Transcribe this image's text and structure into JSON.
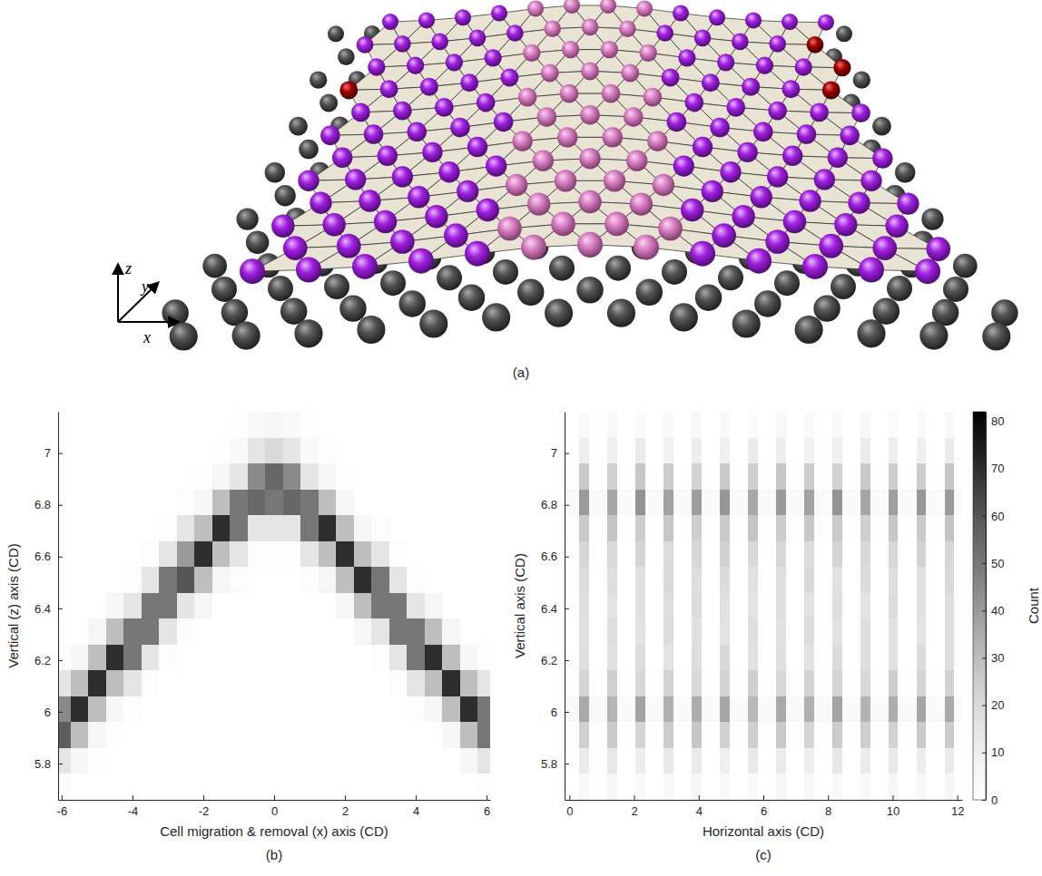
{
  "chart_data": [
    {
      "type": "illustration",
      "title": "(a)",
      "axis_labels": [
        "z",
        "y",
        "x"
      ]
    },
    {
      "type": "heatmap",
      "title": "(b)",
      "xlabel": "Cell migration & removal (x) axis (CD)",
      "ylabel": "Vertical (z) axis (CD)",
      "xlim": [
        -6.1,
        6.1
      ],
      "ylim": [
        5.66,
        7.16
      ],
      "xticks": [
        -6,
        -4,
        -2,
        0,
        2,
        4,
        6
      ],
      "yticks": [
        5.8,
        6,
        6.2,
        6.4,
        6.6,
        6.8,
        7
      ],
      "x_bins": [
        -6.25,
        -5.75,
        -5.25,
        -4.75,
        -4.25,
        -3.75,
        -3.25,
        -2.75,
        -2.25,
        -1.75,
        -1.25,
        -0.75,
        -0.25,
        0.25,
        0.75,
        1.25,
        1.75,
        2.25,
        2.75,
        3.25,
        3.75,
        4.25,
        4.75,
        5.25,
        5.75,
        6.25
      ],
      "y_bins": [
        5.66,
        5.76,
        5.86,
        5.96,
        6.06,
        6.16,
        6.26,
        6.36,
        6.46,
        6.56,
        6.66,
        6.76,
        6.86,
        6.96,
        7.06,
        7.16
      ],
      "values": [
        [
          2,
          0,
          0,
          0,
          0,
          0,
          0,
          0,
          0,
          0,
          0,
          0,
          0,
          0,
          0,
          0,
          0,
          0,
          0,
          0,
          0,
          0,
          0,
          0,
          2
        ],
        [
          15,
          6,
          1,
          0,
          0,
          0,
          0,
          0,
          0,
          0,
          0,
          0,
          0,
          0,
          0,
          0,
          0,
          0,
          0,
          0,
          0,
          0,
          0,
          6,
          15
        ],
        [
          58,
          30,
          6,
          1,
          0,
          0,
          0,
          0,
          0,
          0,
          0,
          0,
          0,
          0,
          0,
          0,
          0,
          0,
          0,
          0,
          0,
          0,
          6,
          30,
          50
        ],
        [
          45,
          70,
          30,
          6,
          2,
          0,
          0,
          0,
          0,
          0,
          0,
          0,
          0,
          0,
          0,
          0,
          0,
          0,
          0,
          0,
          2,
          6,
          30,
          70,
          50
        ],
        [
          15,
          30,
          70,
          30,
          15,
          2,
          0,
          0,
          0,
          0,
          0,
          0,
          0,
          0,
          0,
          0,
          0,
          0,
          0,
          2,
          15,
          30,
          70,
          30,
          15
        ],
        [
          2,
          6,
          30,
          70,
          50,
          15,
          2,
          0,
          0,
          0,
          0,
          0,
          0,
          0,
          0,
          0,
          0,
          0,
          2,
          15,
          50,
          70,
          30,
          6,
          2
        ],
        [
          0,
          0,
          6,
          30,
          50,
          50,
          15,
          2,
          0,
          0,
          0,
          0,
          0,
          0,
          0,
          0,
          0,
          6,
          15,
          50,
          50,
          30,
          6,
          0,
          0
        ],
        [
          0,
          0,
          0,
          6,
          15,
          50,
          50,
          15,
          6,
          0,
          0,
          0,
          0,
          0,
          0,
          0,
          6,
          30,
          50,
          50,
          15,
          6,
          0,
          0,
          0
        ],
        [
          0,
          0,
          0,
          0,
          2,
          15,
          50,
          60,
          30,
          6,
          2,
          0,
          0,
          0,
          2,
          6,
          30,
          70,
          50,
          15,
          2,
          0,
          0,
          0,
          0
        ],
        [
          0,
          0,
          0,
          0,
          0,
          2,
          15,
          40,
          70,
          30,
          15,
          2,
          2,
          2,
          15,
          30,
          70,
          30,
          15,
          2,
          0,
          0,
          0,
          0,
          0
        ],
        [
          0,
          0,
          0,
          0,
          0,
          0,
          2,
          15,
          30,
          70,
          50,
          15,
          15,
          15,
          50,
          70,
          30,
          6,
          2,
          0,
          0,
          0,
          0,
          0,
          0
        ],
        [
          0,
          0,
          0,
          0,
          0,
          0,
          0,
          2,
          6,
          30,
          50,
          55,
          50,
          55,
          50,
          30,
          6,
          0,
          0,
          0,
          0,
          0,
          0,
          0,
          0
        ],
        [
          0,
          0,
          0,
          0,
          0,
          0,
          0,
          0,
          1,
          6,
          15,
          45,
          55,
          45,
          15,
          6,
          1,
          0,
          0,
          0,
          0,
          0,
          0,
          0,
          0
        ],
        [
          0,
          0,
          0,
          0,
          0,
          0,
          0,
          0,
          0,
          1,
          4,
          15,
          20,
          15,
          4,
          1,
          0,
          0,
          0,
          0,
          0,
          0,
          0,
          0,
          0
        ],
        [
          0,
          0,
          0,
          0,
          0,
          0,
          0,
          0,
          0,
          0,
          1,
          4,
          6,
          4,
          1,
          0,
          0,
          0,
          0,
          0,
          0,
          0,
          0,
          0,
          0
        ]
      ]
    },
    {
      "type": "heatmap",
      "title": "(c)",
      "xlabel": "Horizontal axis (CD)",
      "ylabel": "Vertical axis (CD)",
      "xlim": [
        -0.15,
        12.15
      ],
      "ylim": [
        5.66,
        7.16
      ],
      "xticks": [
        0,
        2,
        4,
        6,
        8,
        10,
        12
      ],
      "yticks": [
        5.8,
        6,
        6.2,
        6.4,
        6.6,
        6.8,
        7
      ],
      "x_bins": [
        -0.15,
        0.3,
        0.6,
        1.17,
        1.47,
        2.04,
        2.34,
        2.91,
        3.21,
        3.78,
        4.08,
        4.65,
        4.95,
        5.52,
        5.82,
        6.39,
        6.69,
        7.26,
        7.56,
        8.13,
        8.43,
        9,
        9.3,
        9.87,
        10.17,
        10.74,
        11.04,
        11.61,
        11.91,
        12.15
      ],
      "y_bins": [
        5.66,
        5.76,
        5.86,
        5.96,
        6.06,
        6.16,
        6.26,
        6.36,
        6.46,
        6.56,
        6.66,
        6.76,
        6.86,
        6.96,
        7.06,
        7.16
      ],
      "values": [
        [
          0,
          5,
          0,
          6,
          0,
          4,
          0,
          5,
          0,
          6,
          0,
          5,
          0,
          4,
          0,
          6,
          0,
          5,
          0,
          5,
          0,
          4,
          0,
          6,
          0,
          5,
          0,
          6,
          0
        ],
        [
          0,
          12,
          0,
          14,
          0,
          11,
          0,
          13,
          0,
          12,
          0,
          10,
          0,
          13,
          0,
          12,
          0,
          11,
          0,
          14,
          0,
          12,
          0,
          13,
          0,
          11,
          0,
          12,
          0
        ],
        [
          1,
          24,
          1,
          26,
          1,
          22,
          1,
          25,
          1,
          27,
          1,
          23,
          1,
          24,
          1,
          26,
          1,
          22,
          1,
          25,
          1,
          24,
          1,
          23,
          1,
          26,
          1,
          25,
          1
        ],
        [
          4,
          36,
          4,
          33,
          4,
          38,
          4,
          34,
          4,
          35,
          4,
          37,
          4,
          32,
          4,
          36,
          4,
          34,
          4,
          38,
          4,
          33,
          4,
          35,
          4,
          37,
          4,
          36,
          4
        ],
        [
          1,
          22,
          1,
          24,
          1,
          21,
          1,
          23,
          1,
          20,
          1,
          22,
          1,
          24,
          1,
          21,
          1,
          23,
          1,
          22,
          1,
          20,
          1,
          24,
          1,
          22,
          1,
          23,
          1
        ],
        [
          0,
          18,
          0,
          17,
          0,
          19,
          0,
          16,
          0,
          18,
          0,
          20,
          0,
          17,
          0,
          18,
          0,
          16,
          0,
          19,
          0,
          18,
          0,
          17,
          0,
          19,
          0,
          18,
          0
        ],
        [
          0,
          17,
          0,
          18,
          0,
          16,
          0,
          19,
          0,
          17,
          0,
          16,
          0,
          18,
          0,
          17,
          0,
          19,
          0,
          16,
          0,
          18,
          0,
          17,
          0,
          16,
          0,
          18,
          0
        ],
        [
          0,
          18,
          0,
          16,
          0,
          17,
          0,
          18,
          0,
          19,
          0,
          17,
          0,
          16,
          0,
          18,
          0,
          17,
          0,
          18,
          0,
          16,
          0,
          19,
          0,
          17,
          0,
          18,
          0
        ],
        [
          0,
          19,
          0,
          18,
          0,
          17,
          0,
          20,
          0,
          18,
          0,
          19,
          0,
          17,
          0,
          18,
          0,
          20,
          0,
          17,
          0,
          19,
          0,
          18,
          0,
          17,
          0,
          20,
          0
        ],
        [
          0,
          21,
          0,
          20,
          0,
          22,
          0,
          19,
          0,
          21,
          0,
          23,
          0,
          20,
          0,
          21,
          0,
          19,
          0,
          22,
          0,
          20,
          0,
          21,
          0,
          23,
          0,
          21,
          0
        ],
        [
          1,
          26,
          1,
          28,
          1,
          25,
          1,
          27,
          1,
          24,
          1,
          26,
          1,
          28,
          1,
          25,
          1,
          27,
          1,
          26,
          1,
          24,
          1,
          27,
          1,
          26,
          1,
          28,
          1
        ],
        [
          4,
          40,
          4,
          37,
          4,
          42,
          4,
          38,
          4,
          39,
          4,
          41,
          4,
          36,
          4,
          40,
          4,
          38,
          4,
          42,
          4,
          37,
          4,
          39,
          4,
          41,
          4,
          40,
          4
        ],
        [
          1,
          26,
          1,
          24,
          1,
          27,
          1,
          25,
          1,
          23,
          1,
          26,
          1,
          24,
          1,
          27,
          1,
          25,
          1,
          23,
          1,
          26,
          1,
          24,
          1,
          25,
          1,
          27,
          1
        ],
        [
          0,
          11,
          0,
          10,
          0,
          12,
          0,
          9,
          0,
          11,
          0,
          10,
          0,
          12,
          0,
          11,
          0,
          9,
          0,
          10,
          0,
          12,
          0,
          11,
          0,
          10,
          0,
          12,
          0
        ],
        [
          0,
          4,
          0,
          5,
          0,
          3,
          0,
          4,
          0,
          5,
          0,
          4,
          0,
          3,
          0,
          5,
          0,
          4,
          0,
          4,
          0,
          5,
          0,
          3,
          0,
          4,
          0,
          5,
          0
        ]
      ],
      "colorbar": {
        "label": "Count",
        "range": [
          0,
          82
        ],
        "ticks": [
          0,
          10,
          20,
          30,
          40,
          50,
          60,
          70,
          80
        ]
      }
    }
  ]
}
